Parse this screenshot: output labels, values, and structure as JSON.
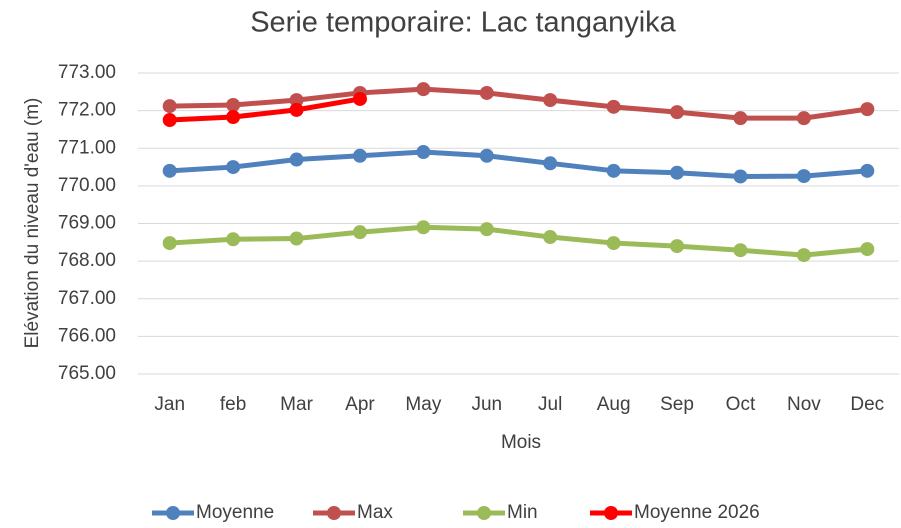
{
  "chart_data": {
    "type": "line",
    "title": "Serie temporaire: Lac tanganyika",
    "x_label": "Mois",
    "y_label": "Elévation du niveau d'eau (m)",
    "categories": [
      "Jan",
      "feb",
      "Mar",
      "Apr",
      "May",
      "Jun",
      "Jul",
      "Aug",
      "Sep",
      "Oct",
      "Nov",
      "Dec"
    ],
    "series": [
      {
        "name": "Moyenne",
        "color": "#4f81bd",
        "values": [
          770.4,
          770.5,
          770.7,
          770.8,
          770.9,
          770.8,
          770.6,
          770.4,
          770.35,
          770.25,
          770.26,
          770.4
        ]
      },
      {
        "name": "Max",
        "color": "#c0504d",
        "values": [
          772.12,
          772.15,
          772.28,
          772.47,
          772.57,
          772.47,
          772.28,
          772.1,
          771.96,
          771.8,
          771.8,
          772.04
        ]
      },
      {
        "name": "Min",
        "color": "#9bbb59",
        "values": [
          768.48,
          768.58,
          768.6,
          768.77,
          768.9,
          768.85,
          768.64,
          768.48,
          768.4,
          768.29,
          768.16,
          768.32
        ]
      },
      {
        "name": "Moyenne 2026",
        "color": "#ff0000",
        "values": [
          771.75,
          771.83,
          772.02,
          772.31,
          null,
          null,
          null,
          null,
          null,
          null,
          null,
          null
        ]
      }
    ],
    "ylim": [
      765,
      773
    ],
    "yticks": [
      {
        "value": 765,
        "label": "765.00"
      },
      {
        "value": 766,
        "label": "766.00"
      },
      {
        "value": 767,
        "label": "767.00"
      },
      {
        "value": 768,
        "label": "768.00"
      },
      {
        "value": 769,
        "label": "769.00"
      },
      {
        "value": 770,
        "label": "770.00"
      },
      {
        "value": 771,
        "label": "771.00"
      },
      {
        "value": 772,
        "label": "772.00"
      },
      {
        "value": 773,
        "label": "773.00"
      }
    ],
    "grid": true,
    "legend": "bottom"
  }
}
